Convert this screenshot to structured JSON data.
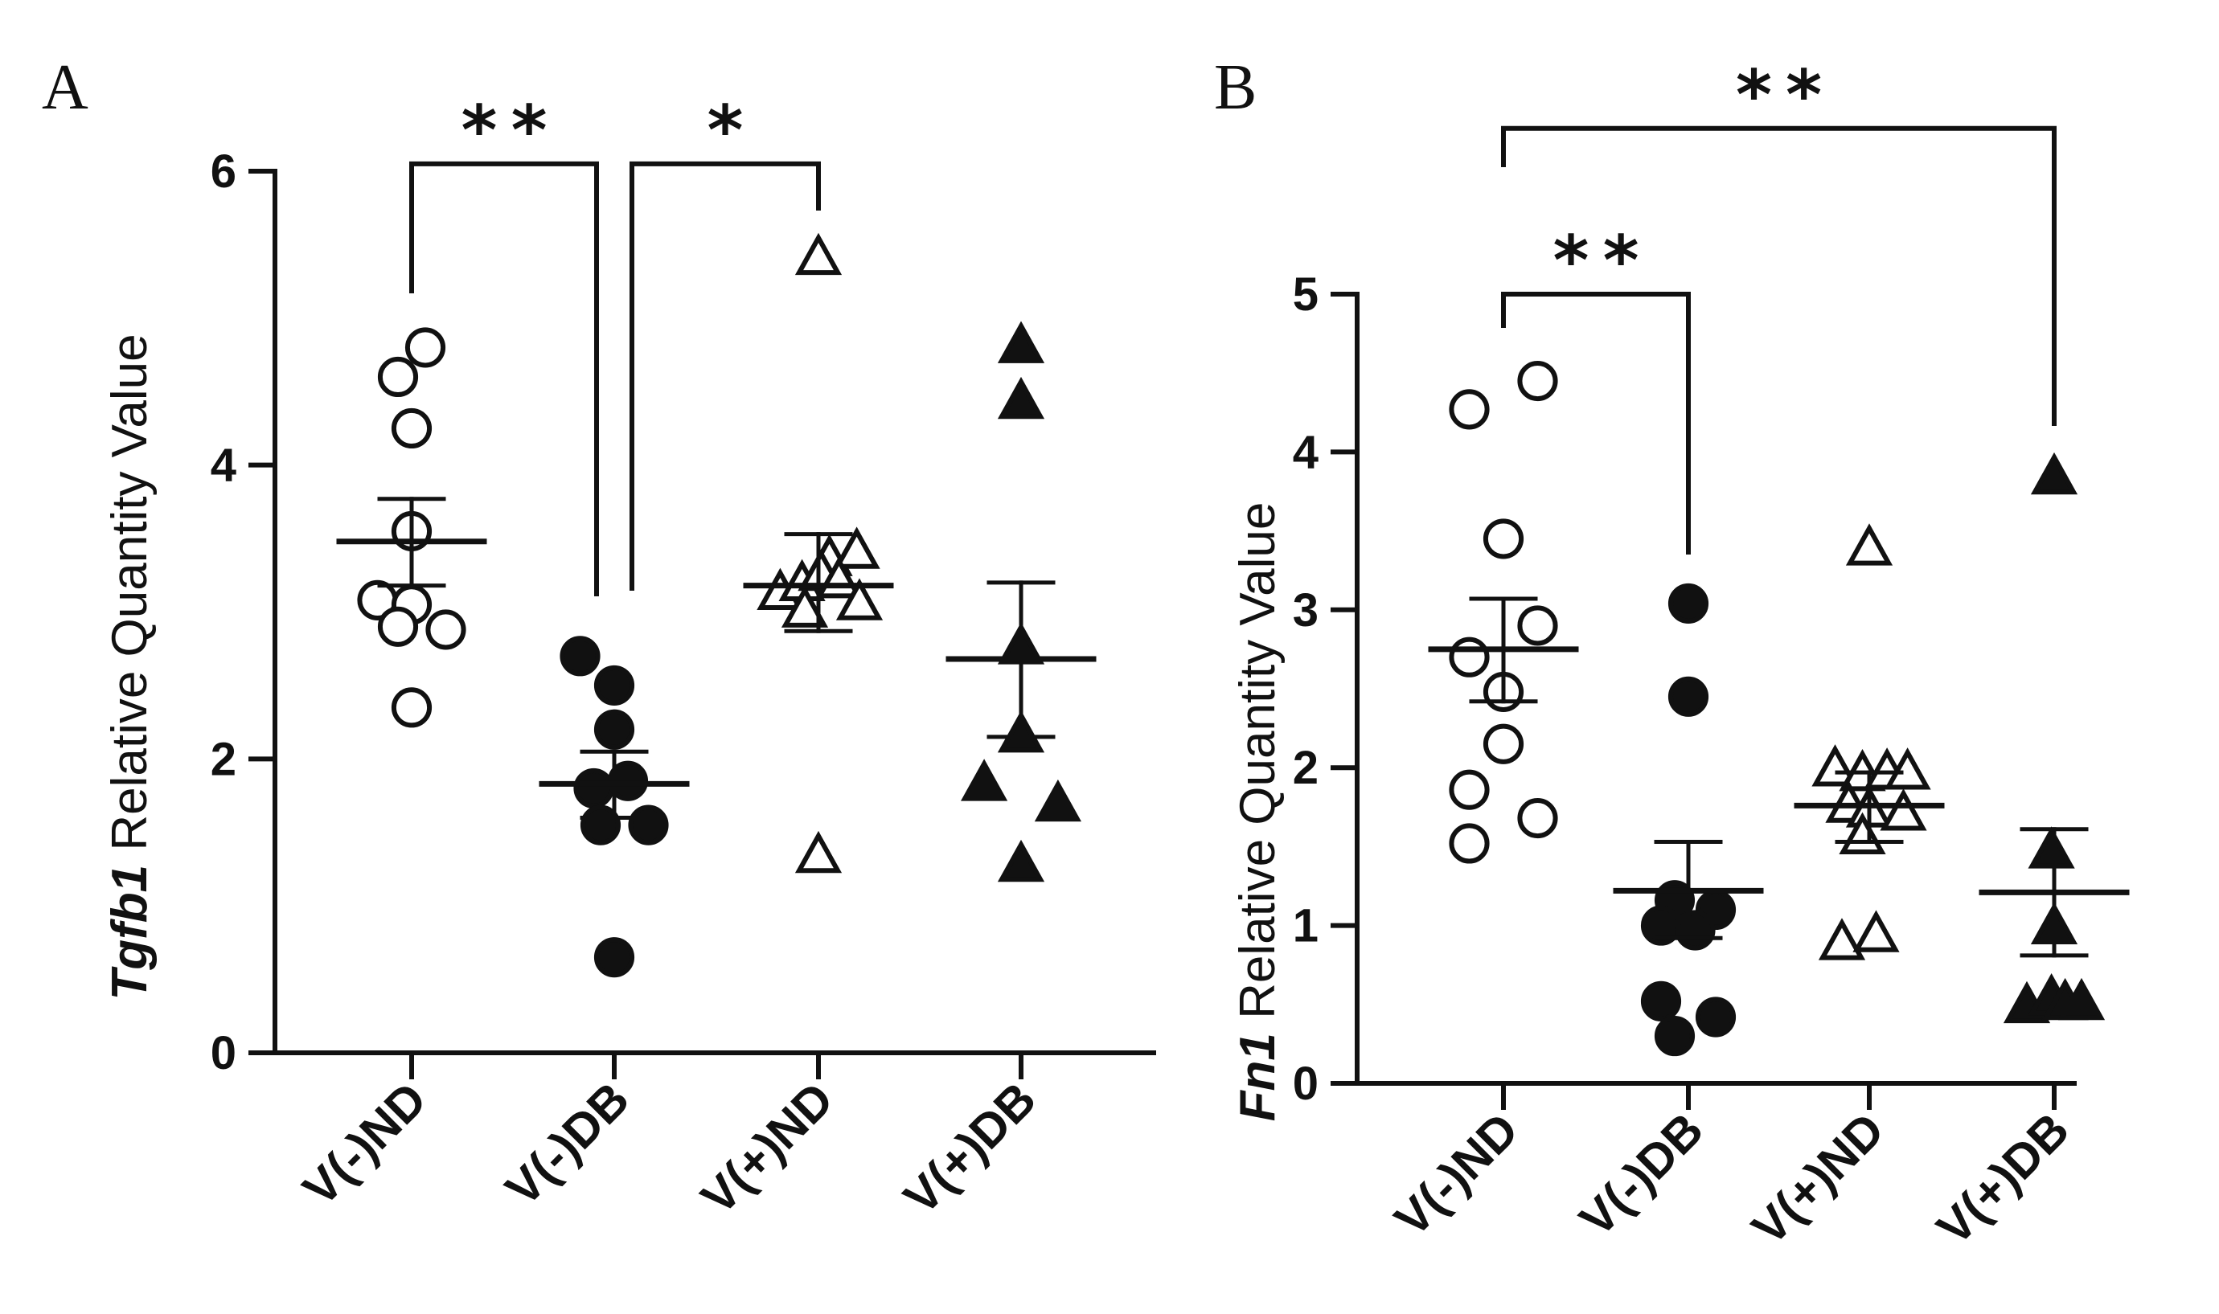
{
  "chart_data": [
    {
      "panel": "A",
      "type": "scatter",
      "gene": "Tgfb1",
      "ylabel_suffix": " Relative Quantity Value",
      "ylim": [
        0,
        6
      ],
      "yticks": [
        "0",
        "2",
        "4",
        "6"
      ],
      "categories": [
        "V(-)ND",
        "V(-)DB",
        "V(+)ND",
        "V(+)DB"
      ],
      "series": [
        {
          "name": "V(-)ND",
          "marker": "circle-open",
          "points": [
            [
              -0.1,
              4.6
            ],
            [
              0.1,
              4.8
            ],
            [
              0.0,
              4.25
            ],
            [
              0.0,
              3.55
            ],
            [
              -0.25,
              3.08
            ],
            [
              0.0,
              3.05
            ],
            [
              -0.1,
              2.9
            ],
            [
              0.25,
              2.88
            ],
            [
              0.0,
              2.35
            ]
          ],
          "mean": 3.48,
          "sem_low": 3.18,
          "sem_high": 3.77
        },
        {
          "name": "V(-)DB",
          "marker": "circle-filled",
          "points": [
            [
              -0.25,
              2.7
            ],
            [
              0.0,
              2.5
            ],
            [
              0.0,
              2.2
            ],
            [
              -0.15,
              1.8
            ],
            [
              0.1,
              1.85
            ],
            [
              -0.1,
              1.55
            ],
            [
              0.25,
              1.55
            ],
            [
              0.0,
              0.65
            ]
          ],
          "mean": 1.83,
          "sem_low": 1.6,
          "sem_high": 2.05
        },
        {
          "name": "V(+)ND",
          "marker": "triangle-open",
          "points": [
            [
              0.0,
              5.4
            ],
            [
              0.08,
              3.35
            ],
            [
              0.28,
              3.4
            ],
            [
              -0.28,
              3.12
            ],
            [
              -0.12,
              3.18
            ],
            [
              0.02,
              3.25
            ],
            [
              0.15,
              3.2
            ],
            [
              -0.1,
              3.0
            ],
            [
              0.3,
              3.05
            ],
            [
              0.0,
              1.33
            ]
          ],
          "mean": 3.18,
          "sem_low": 2.87,
          "sem_high": 3.53
        },
        {
          "name": "V(+)DB",
          "marker": "triangle-filled",
          "points": [
            [
              0.0,
              4.8
            ],
            [
              0.0,
              4.42
            ],
            [
              0.0,
              2.75
            ],
            [
              0.0,
              2.15
            ],
            [
              -0.27,
              1.82
            ],
            [
              0.27,
              1.68
            ],
            [
              0.0,
              1.27
            ]
          ],
          "mean": 2.68,
          "sem_low": 2.15,
          "sem_high": 3.2
        }
      ],
      "comparisons": [
        {
          "from": 0,
          "to": 1,
          "y": 6.05,
          "label": "**"
        },
        {
          "from": 1,
          "to": 2,
          "y": 6.05,
          "label": "*"
        }
      ]
    },
    {
      "panel": "B",
      "type": "scatter",
      "gene": "Fn1",
      "ylabel_suffix": " Relative Quantity Value",
      "ylim": [
        0,
        5
      ],
      "yticks": [
        "0",
        "1",
        "2",
        "3",
        "4",
        "5"
      ],
      "categories": [
        "V(-)ND",
        "V(-)DB",
        "V(+)ND",
        "V(+)DB"
      ],
      "series": [
        {
          "name": "V(-)ND",
          "marker": "circle-open",
          "points": [
            [
              -0.25,
              4.27
            ],
            [
              0.25,
              4.45
            ],
            [
              0.0,
              3.45
            ],
            [
              0.25,
              2.9
            ],
            [
              -0.25,
              2.7
            ],
            [
              0.0,
              2.48
            ],
            [
              0.0,
              2.15
            ],
            [
              -0.25,
              1.86
            ],
            [
              0.25,
              1.68
            ],
            [
              -0.25,
              1.52
            ]
          ],
          "mean": 2.75,
          "sem_low": 2.42,
          "sem_high": 3.07
        },
        {
          "name": "V(-)DB",
          "marker": "circle-filled",
          "points": [
            [
              0.0,
              3.04
            ],
            [
              0.0,
              2.45
            ],
            [
              -0.1,
              1.16
            ],
            [
              0.2,
              1.1
            ],
            [
              -0.2,
              1.0
            ],
            [
              0.05,
              0.97
            ],
            [
              -0.2,
              0.52
            ],
            [
              0.2,
              0.42
            ],
            [
              -0.1,
              0.3
            ]
          ],
          "mean": 1.22,
          "sem_low": 0.92,
          "sem_high": 1.53
        },
        {
          "name": "V(+)ND",
          "marker": "triangle-open",
          "points": [
            [
              0.0,
              3.38
            ],
            [
              -0.25,
              1.98
            ],
            [
              -0.05,
              1.95
            ],
            [
              0.13,
              1.96
            ],
            [
              0.28,
              1.96
            ],
            [
              -0.15,
              1.75
            ],
            [
              0.0,
              1.72
            ],
            [
              0.25,
              1.7
            ],
            [
              -0.05,
              1.55
            ],
            [
              -0.2,
              0.88
            ],
            [
              0.05,
              0.93
            ]
          ],
          "mean": 1.76,
          "sem_low": 1.53,
          "sem_high": 1.97
        },
        {
          "name": "V(+)DB",
          "marker": "triangle-filled",
          "points": [
            [
              0.0,
              3.83
            ],
            [
              -0.02,
              1.46
            ],
            [
              0.0,
              0.98
            ],
            [
              -0.2,
              0.48
            ],
            [
              -0.02,
              0.53
            ],
            [
              0.08,
              0.5
            ],
            [
              0.2,
              0.5
            ]
          ],
          "mean": 1.21,
          "sem_low": 0.81,
          "sem_high": 1.61
        }
      ],
      "comparisons": [
        {
          "from": 0,
          "to": 1,
          "y": 5.0,
          "label": "**"
        },
        {
          "from": 0,
          "to": 3,
          "y": 6.05,
          "label": "**"
        }
      ]
    }
  ]
}
